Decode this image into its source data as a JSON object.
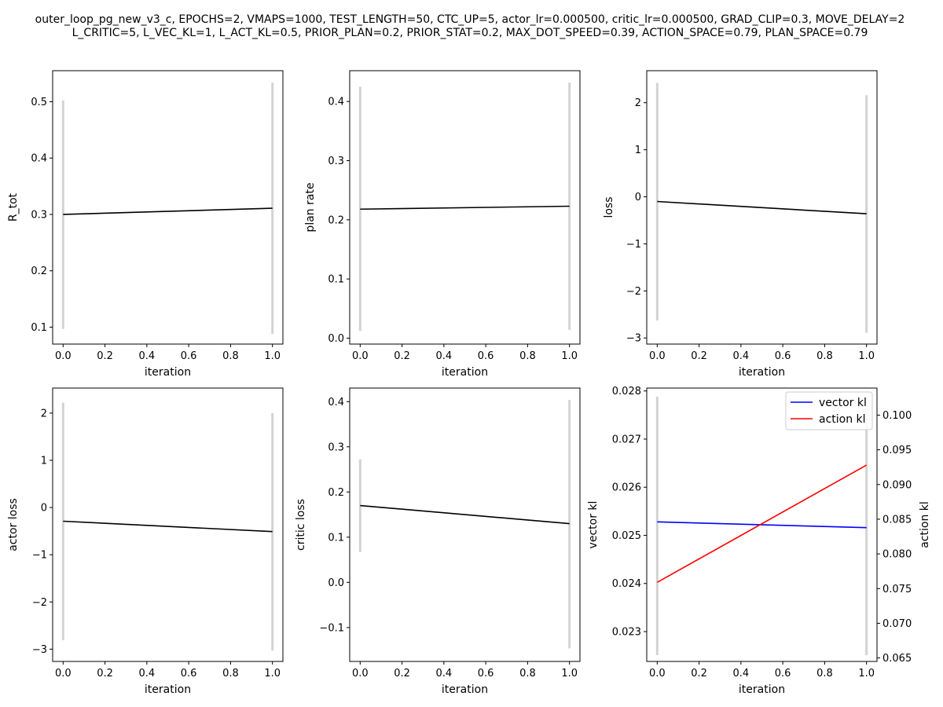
{
  "figure": {
    "title_lines": [
      "outer_loop_pg_new_v3_c, EPOCHS=2, VMAPS=1000, TEST_LENGTH=50, CTC_UP=5, actor_lr=0.000500, critic_lr=0.000500, GRAD_CLIP=0.3, MOVE_DELAY=2",
      "L_CRITIC=5, L_VEC_KL=1, L_ACT_KL=0.5, PRIOR_PLAN=0.2, PRIOR_STAT=0.2, MAX_DOT_SPEED=0.39, ACTION_SPACE=0.79, PLAN_SPACE=0.79"
    ]
  },
  "chart_data": [
    {
      "type": "line",
      "xlabel": "iteration",
      "ylabel": "R_tot",
      "xlim": [
        -0.05,
        1.05
      ],
      "ylim": [
        0.07,
        0.555
      ],
      "xticks": [
        0.0,
        0.2,
        0.4,
        0.6,
        0.8,
        1.0
      ],
      "xtick_labels": [
        "0.0",
        "0.2",
        "0.4",
        "0.6",
        "0.8",
        "1.0"
      ],
      "yticks": [
        0.1,
        0.2,
        0.3,
        0.4,
        0.5
      ],
      "ytick_labels": [
        "0.1",
        "0.2",
        "0.3",
        "0.4",
        "0.5"
      ],
      "x": [
        0,
        1
      ],
      "series": [
        {
          "values": [
            0.3,
            0.311
          ],
          "color": "#000000"
        }
      ],
      "errorbars": [
        {
          "x": 0,
          "low": 0.097,
          "high": 0.502
        },
        {
          "x": 1,
          "low": 0.088,
          "high": 0.534
        }
      ]
    },
    {
      "type": "line",
      "xlabel": "iteration",
      "ylabel": "plan rate",
      "xlim": [
        -0.05,
        1.05
      ],
      "ylim": [
        -0.01,
        0.452
      ],
      "xticks": [
        0.0,
        0.2,
        0.4,
        0.6,
        0.8,
        1.0
      ],
      "xtick_labels": [
        "0.0",
        "0.2",
        "0.4",
        "0.6",
        "0.8",
        "1.0"
      ],
      "yticks": [
        0.0,
        0.1,
        0.2,
        0.3,
        0.4
      ],
      "ytick_labels": [
        "0.0",
        "0.1",
        "0.2",
        "0.3",
        "0.4"
      ],
      "x": [
        0,
        1
      ],
      "series": [
        {
          "values": [
            0.218,
            0.223
          ],
          "color": "#000000"
        }
      ],
      "errorbars": [
        {
          "x": 0,
          "low": 0.012,
          "high": 0.425
        },
        {
          "x": 1,
          "low": 0.014,
          "high": 0.432
        }
      ]
    },
    {
      "type": "line",
      "xlabel": "iteration",
      "ylabel": "loss",
      "xlim": [
        -0.05,
        1.05
      ],
      "ylim": [
        -3.13,
        2.68
      ],
      "xticks": [
        0.0,
        0.2,
        0.4,
        0.6,
        0.8,
        1.0
      ],
      "xtick_labels": [
        "0.0",
        "0.2",
        "0.4",
        "0.6",
        "0.8",
        "1.0"
      ],
      "yticks": [
        -3,
        -2,
        -1,
        0,
        1,
        2
      ],
      "ytick_labels": [
        "−3",
        "−2",
        "−1",
        "0",
        "1",
        "2"
      ],
      "x": [
        0,
        1
      ],
      "series": [
        {
          "values": [
            -0.1,
            -0.36
          ],
          "color": "#000000"
        }
      ],
      "errorbars": [
        {
          "x": 0,
          "low": -2.63,
          "high": 2.42
        },
        {
          "x": 1,
          "low": -2.89,
          "high": 2.16
        }
      ]
    },
    {
      "type": "line",
      "xlabel": "iteration",
      "ylabel": "actor loss",
      "xlim": [
        -0.05,
        1.05
      ],
      "ylim": [
        -3.26,
        2.53
      ],
      "xticks": [
        0.0,
        0.2,
        0.4,
        0.6,
        0.8,
        1.0
      ],
      "xtick_labels": [
        "0.0",
        "0.2",
        "0.4",
        "0.6",
        "0.8",
        "1.0"
      ],
      "yticks": [
        -3,
        -2,
        -1,
        0,
        1,
        2
      ],
      "ytick_labels": [
        "−3",
        "−2",
        "−1",
        "0",
        "1",
        "2"
      ],
      "x": [
        0,
        1
      ],
      "series": [
        {
          "values": [
            -0.29,
            -0.51
          ],
          "color": "#000000"
        }
      ],
      "errorbars": [
        {
          "x": 0,
          "low": -2.81,
          "high": 2.22
        },
        {
          "x": 1,
          "low": -3.03,
          "high": 2.0
        }
      ]
    },
    {
      "type": "line",
      "xlabel": "iteration",
      "ylabel": "critic loss",
      "xlim": [
        -0.05,
        1.05
      ],
      "ylim": [
        -0.175,
        0.43
      ],
      "xticks": [
        0.0,
        0.2,
        0.4,
        0.6,
        0.8,
        1.0
      ],
      "xtick_labels": [
        "0.0",
        "0.2",
        "0.4",
        "0.6",
        "0.8",
        "1.0"
      ],
      "yticks": [
        -0.1,
        0.0,
        0.1,
        0.2,
        0.3,
        0.4
      ],
      "ytick_labels": [
        "−0.1",
        "0.0",
        "0.1",
        "0.2",
        "0.3",
        "0.4"
      ],
      "x": [
        0,
        1
      ],
      "series": [
        {
          "values": [
            0.17,
            0.13
          ],
          "color": "#000000"
        }
      ],
      "errorbars": [
        {
          "x": 0,
          "low": 0.067,
          "high": 0.272
        },
        {
          "x": 1,
          "low": -0.146,
          "high": 0.404
        }
      ]
    },
    {
      "type": "line",
      "xlabel": "iteration",
      "ylabel": "vector kl",
      "ylabel_right": "action kl",
      "xlim": [
        -0.05,
        1.05
      ],
      "ylim": [
        0.02238,
        0.02806
      ],
      "ylim_right": [
        0.0645,
        0.1039
      ],
      "xticks": [
        0.0,
        0.2,
        0.4,
        0.6,
        0.8,
        1.0
      ],
      "xtick_labels": [
        "0.0",
        "0.2",
        "0.4",
        "0.6",
        "0.8",
        "1.0"
      ],
      "yticks": [
        0.023,
        0.024,
        0.025,
        0.026,
        0.027,
        0.028
      ],
      "ytick_labels": [
        "0.023",
        "0.024",
        "0.025",
        "0.026",
        "0.027",
        "0.028"
      ],
      "yticks_right": [
        0.065,
        0.07,
        0.075,
        0.08,
        0.085,
        0.09,
        0.095,
        0.1
      ],
      "ytick_labels_right": [
        "0.065",
        "0.070",
        "0.075",
        "0.080",
        "0.085",
        "0.090",
        "0.095",
        "0.100"
      ],
      "x": [
        0,
        1
      ],
      "series": [
        {
          "name": "vector kl",
          "values": [
            0.02528,
            0.02516
          ],
          "color": "#0000ff",
          "axis": "left"
        },
        {
          "name": "action kl",
          "values": [
            0.0759,
            0.0928
          ],
          "color": "#ff0000",
          "axis": "right"
        }
      ],
      "errorbars": [
        {
          "x": 0,
          "low": 0.02251,
          "high": 0.02788
        },
        {
          "x": 1,
          "low": 0.02251,
          "high": 0.02788
        }
      ],
      "legend": {
        "position": "top-right",
        "entries": [
          "vector kl",
          "action kl"
        ]
      }
    }
  ]
}
